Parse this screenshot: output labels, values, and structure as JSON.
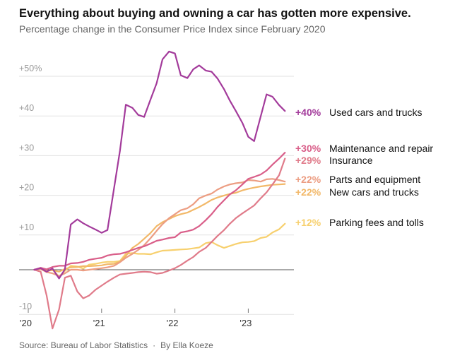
{
  "title": "Everything about buying and owning a car has gotten more expensive.",
  "subtitle": "Percentage change in the Consumer Price Index since February 2020",
  "footer": {
    "source": "Source: Bureau of Labor Statistics",
    "separator": "·",
    "byline": "By Ella Koeze"
  },
  "chart_data": {
    "type": "line",
    "title": "Everything about buying and owning a car has gotten more expensive.",
    "subtitle": "Percentage change in the Consumer Price Index since February 2020",
    "xlabel": "",
    "ylabel": "",
    "x_range": [
      2020.0,
      2023.58
    ],
    "ylim": [
      -10,
      56
    ],
    "y_ticks": [
      {
        "value": -10,
        "label": "-10"
      },
      {
        "value": 10,
        "label": "+10"
      },
      {
        "value": 20,
        "label": "+20"
      },
      {
        "value": 30,
        "label": "+30"
      },
      {
        "value": 40,
        "label": "+40"
      },
      {
        "value": 50,
        "label": "+50%"
      }
    ],
    "x_ticks": [
      {
        "value": 2020,
        "label": "'20"
      },
      {
        "value": 2021,
        "label": "'21"
      },
      {
        "value": 2022,
        "label": "'22"
      },
      {
        "value": 2023,
        "label": "'23"
      }
    ],
    "series": [
      {
        "name": "Used cars and trucks",
        "label_value": "+40%",
        "color": "#a33b9b",
        "points": [
          [
            2020.08,
            0
          ],
          [
            2020.17,
            0.4
          ],
          [
            2020.25,
            -0.5
          ],
          [
            2020.33,
            0.3
          ],
          [
            2020.42,
            -2.2
          ],
          [
            2020.5,
            0.1
          ],
          [
            2020.58,
            11.4
          ],
          [
            2020.67,
            12.7
          ],
          [
            2020.75,
            11.7
          ],
          [
            2020.83,
            10.9
          ],
          [
            2020.92,
            10.1
          ],
          [
            2021.0,
            9.3
          ],
          [
            2021.08,
            10.0
          ],
          [
            2021.25,
            30.0
          ],
          [
            2021.33,
            41.6
          ],
          [
            2021.42,
            40.8
          ],
          [
            2021.5,
            39.0
          ],
          [
            2021.58,
            38.5
          ],
          [
            2021.67,
            43.0
          ],
          [
            2021.75,
            47.0
          ],
          [
            2021.83,
            53.0
          ],
          [
            2021.92,
            55.0
          ],
          [
            2022.0,
            54.5
          ],
          [
            2022.08,
            49.0
          ],
          [
            2022.17,
            48.3
          ],
          [
            2022.25,
            50.5
          ],
          [
            2022.33,
            51.5
          ],
          [
            2022.42,
            50.2
          ],
          [
            2022.5,
            49.9
          ],
          [
            2022.58,
            48.2
          ],
          [
            2022.67,
            45.5
          ],
          [
            2022.75,
            42.6
          ],
          [
            2022.83,
            40.0
          ],
          [
            2022.92,
            37.0
          ],
          [
            2023.0,
            33.5
          ],
          [
            2023.08,
            32.4
          ],
          [
            2023.25,
            44.2
          ],
          [
            2023.33,
            43.6
          ],
          [
            2023.42,
            41.5
          ],
          [
            2023.5,
            40.0
          ]
        ]
      },
      {
        "name": "Maintenance and repair",
        "label_value": "+30%",
        "color": "#d95e89",
        "points": [
          [
            2020.08,
            0
          ],
          [
            2020.17,
            0.5
          ],
          [
            2020.25,
            0.1
          ],
          [
            2020.33,
            0.7
          ],
          [
            2020.42,
            1.0
          ],
          [
            2020.5,
            1.0
          ],
          [
            2020.58,
            1.6
          ],
          [
            2020.67,
            1.7
          ],
          [
            2020.75,
            2.0
          ],
          [
            2020.83,
            2.5
          ],
          [
            2020.92,
            2.8
          ],
          [
            2021.0,
            3.0
          ],
          [
            2021.08,
            3.6
          ],
          [
            2021.17,
            3.9
          ],
          [
            2021.25,
            4.0
          ],
          [
            2021.33,
            4.4
          ],
          [
            2021.42,
            5.0
          ],
          [
            2021.5,
            5.5
          ],
          [
            2021.58,
            5.9
          ],
          [
            2021.67,
            6.6
          ],
          [
            2021.75,
            7.3
          ],
          [
            2021.83,
            7.6
          ],
          [
            2021.92,
            8.0
          ],
          [
            2022.0,
            8.2
          ],
          [
            2022.08,
            9.4
          ],
          [
            2022.17,
            9.7
          ],
          [
            2022.25,
            10.1
          ],
          [
            2022.33,
            11.0
          ],
          [
            2022.42,
            12.5
          ],
          [
            2022.5,
            14.0
          ],
          [
            2022.58,
            15.8
          ],
          [
            2022.67,
            17.5
          ],
          [
            2022.75,
            19.0
          ],
          [
            2022.83,
            20.0
          ],
          [
            2022.92,
            21.5
          ],
          [
            2023.0,
            22.9
          ],
          [
            2023.08,
            23.4
          ],
          [
            2023.17,
            24.0
          ],
          [
            2023.25,
            25.0
          ],
          [
            2023.33,
            26.5
          ],
          [
            2023.42,
            28.0
          ],
          [
            2023.5,
            29.5
          ]
        ]
      },
      {
        "name": "Insurance",
        "label_value": "+29%",
        "color": "#e07b8a",
        "points": [
          [
            2020.08,
            0
          ],
          [
            2020.17,
            -0.5
          ],
          [
            2020.25,
            -6.5
          ],
          [
            2020.33,
            -14.8
          ],
          [
            2020.42,
            -10.0
          ],
          [
            2020.5,
            -2.0
          ],
          [
            2020.58,
            -1.5
          ],
          [
            2020.67,
            -5.5
          ],
          [
            2020.75,
            -7.2
          ],
          [
            2020.83,
            -6.5
          ],
          [
            2020.92,
            -5.0
          ],
          [
            2021.0,
            -4.0
          ],
          [
            2021.08,
            -3.0
          ],
          [
            2021.17,
            -2.0
          ],
          [
            2021.25,
            -1.2
          ],
          [
            2021.33,
            -1.0
          ],
          [
            2021.42,
            -0.8
          ],
          [
            2021.5,
            -0.6
          ],
          [
            2021.58,
            -0.5
          ],
          [
            2021.67,
            -0.6
          ],
          [
            2021.75,
            -1.0
          ],
          [
            2021.83,
            -0.8
          ],
          [
            2021.92,
            -0.2
          ],
          [
            2022.0,
            0.4
          ],
          [
            2022.08,
            1.2
          ],
          [
            2022.17,
            2.3
          ],
          [
            2022.25,
            3.2
          ],
          [
            2022.33,
            4.5
          ],
          [
            2022.42,
            5.5
          ],
          [
            2022.5,
            7.0
          ],
          [
            2022.58,
            8.5
          ],
          [
            2022.67,
            10.0
          ],
          [
            2022.75,
            11.6
          ],
          [
            2022.83,
            13.0
          ],
          [
            2022.92,
            14.2
          ],
          [
            2023.0,
            15.2
          ],
          [
            2023.08,
            16.2
          ],
          [
            2023.17,
            18.0
          ],
          [
            2023.25,
            19.5
          ],
          [
            2023.33,
            21.5
          ],
          [
            2023.42,
            23.8
          ],
          [
            2023.5,
            28.0
          ]
        ]
      },
      {
        "name": "Parts and equipment",
        "label_value": "+22%",
        "color": "#ec9d82",
        "points": [
          [
            2020.08,
            0
          ],
          [
            2020.17,
            0.2
          ],
          [
            2020.25,
            -0.6
          ],
          [
            2020.33,
            -0.9
          ],
          [
            2020.42,
            -1.6
          ],
          [
            2020.5,
            -0.9
          ],
          [
            2020.58,
            0
          ],
          [
            2020.67,
            0
          ],
          [
            2020.75,
            -0.2
          ],
          [
            2020.83,
            0
          ],
          [
            2020.92,
            0.2
          ],
          [
            2021.0,
            0.4
          ],
          [
            2021.08,
            0.6
          ],
          [
            2021.17,
            1.0
          ],
          [
            2021.25,
            1.9
          ],
          [
            2021.33,
            3.0
          ],
          [
            2021.42,
            4.0
          ],
          [
            2021.5,
            5.0
          ],
          [
            2021.58,
            6.2
          ],
          [
            2021.67,
            8.0
          ],
          [
            2021.75,
            9.8
          ],
          [
            2021.83,
            11.5
          ],
          [
            2021.92,
            13.0
          ],
          [
            2022.0,
            14.0
          ],
          [
            2022.08,
            15.0
          ],
          [
            2022.17,
            15.5
          ],
          [
            2022.25,
            16.5
          ],
          [
            2022.33,
            18.0
          ],
          [
            2022.42,
            18.7
          ],
          [
            2022.5,
            19.2
          ],
          [
            2022.58,
            20.2
          ],
          [
            2022.67,
            21.0
          ],
          [
            2022.75,
            21.5
          ],
          [
            2022.83,
            21.8
          ],
          [
            2022.92,
            22.0
          ],
          [
            2023.0,
            22.6
          ],
          [
            2023.08,
            22.5
          ],
          [
            2023.17,
            22.2
          ],
          [
            2023.25,
            22.8
          ],
          [
            2023.33,
            22.9
          ],
          [
            2023.42,
            22.6
          ],
          [
            2023.5,
            22.2
          ]
        ]
      },
      {
        "name": "New cars and trucks",
        "label_value": "+22%",
        "color": "#f2b868",
        "points": [
          [
            2020.08,
            0
          ],
          [
            2020.17,
            0.1
          ],
          [
            2020.25,
            -0.3
          ],
          [
            2020.33,
            -0.1
          ],
          [
            2020.42,
            -0.5
          ],
          [
            2020.5,
            0.2
          ],
          [
            2020.58,
            0.6
          ],
          [
            2020.67,
            0.7
          ],
          [
            2020.75,
            0.9
          ],
          [
            2020.83,
            0.9
          ],
          [
            2020.92,
            1.0
          ],
          [
            2021.0,
            1.1
          ],
          [
            2021.08,
            1.4
          ],
          [
            2021.17,
            1.5
          ],
          [
            2021.25,
            2.0
          ],
          [
            2021.33,
            3.5
          ],
          [
            2021.42,
            5.5
          ],
          [
            2021.5,
            6.5
          ],
          [
            2021.58,
            7.8
          ],
          [
            2021.67,
            9.3
          ],
          [
            2021.75,
            11.0
          ],
          [
            2021.83,
            12.0
          ],
          [
            2021.92,
            12.8
          ],
          [
            2022.0,
            13.5
          ],
          [
            2022.08,
            14.0
          ],
          [
            2022.17,
            14.4
          ],
          [
            2022.25,
            15.1
          ],
          [
            2022.33,
            15.8
          ],
          [
            2022.42,
            16.7
          ],
          [
            2022.5,
            17.6
          ],
          [
            2022.58,
            18.2
          ],
          [
            2022.67,
            18.7
          ],
          [
            2022.75,
            19.1
          ],
          [
            2022.83,
            19.4
          ],
          [
            2022.92,
            20.0
          ],
          [
            2023.0,
            20.4
          ],
          [
            2023.08,
            20.7
          ],
          [
            2023.17,
            21.0
          ],
          [
            2023.25,
            21.2
          ],
          [
            2023.33,
            21.4
          ],
          [
            2023.42,
            21.5
          ],
          [
            2023.5,
            21.6
          ]
        ]
      },
      {
        "name": "Parking fees and tolls",
        "label_value": "+12%",
        "color": "#f7d06e",
        "points": [
          [
            2020.08,
            0
          ],
          [
            2020.17,
            0.3
          ],
          [
            2020.25,
            -0.4
          ],
          [
            2020.33,
            0
          ],
          [
            2020.42,
            -1.7
          ],
          [
            2020.5,
            -0.3
          ],
          [
            2020.58,
            1.0
          ],
          [
            2020.67,
            0.8
          ],
          [
            2020.75,
            0.3
          ],
          [
            2020.83,
            1.3
          ],
          [
            2020.92,
            1.5
          ],
          [
            2021.0,
            1.8
          ],
          [
            2021.08,
            2.0
          ],
          [
            2021.17,
            2.0
          ],
          [
            2021.25,
            2.2
          ],
          [
            2021.33,
            4.0
          ],
          [
            2021.42,
            4.2
          ],
          [
            2021.5,
            4.0
          ],
          [
            2021.58,
            4.0
          ],
          [
            2021.67,
            3.9
          ],
          [
            2021.75,
            4.4
          ],
          [
            2021.83,
            4.8
          ],
          [
            2021.92,
            4.9
          ],
          [
            2022.0,
            5.0
          ],
          [
            2022.08,
            5.1
          ],
          [
            2022.17,
            5.2
          ],
          [
            2022.25,
            5.4
          ],
          [
            2022.33,
            5.6
          ],
          [
            2022.42,
            6.7
          ],
          [
            2022.5,
            7.0
          ],
          [
            2022.58,
            6.2
          ],
          [
            2022.67,
            5.5
          ],
          [
            2022.75,
            6.0
          ],
          [
            2022.83,
            6.5
          ],
          [
            2022.92,
            6.9
          ],
          [
            2023.0,
            7.0
          ],
          [
            2023.08,
            7.2
          ],
          [
            2023.17,
            8.0
          ],
          [
            2023.25,
            8.3
          ],
          [
            2023.33,
            9.4
          ],
          [
            2023.42,
            10.2
          ],
          [
            2023.5,
            11.6
          ]
        ]
      }
    ]
  }
}
